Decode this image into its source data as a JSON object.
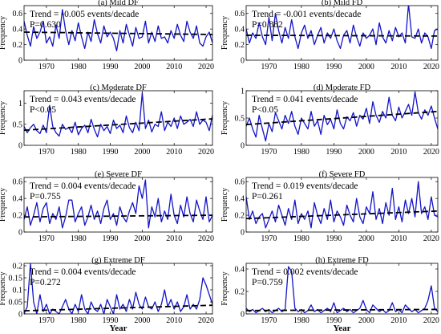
{
  "colors": {
    "series": "#1414c8",
    "trend": "#000000",
    "axis": "#000000"
  },
  "x_axis_title": "Year",
  "y_axis_title": "Frequency",
  "chart_data": [
    {
      "type": "line",
      "title": "(a) Mild DF",
      "ylabel": "Frequency",
      "xlim": [
        1963,
        2022
      ],
      "ylim": [
        0,
        0.7
      ],
      "xticks": [
        1970,
        1980,
        1990,
        2000,
        2010,
        2020
      ],
      "xtick_labels": [
        "1970",
        "1980",
        "1990",
        "2000",
        "2010",
        "2020"
      ],
      "yticks": [
        0,
        0.2,
        0.4,
        0.6
      ],
      "ytick_labels": [
        "0",
        "0.2",
        "0.4",
        "0.6"
      ],
      "annotation_trend": "Trend = -0.005 events/decade",
      "annotation_p": "P=0.630",
      "trend_line": [
        0.36,
        0.33
      ],
      "series": [
        {
          "values": [
            0.5,
            0.32,
            0.18,
            0.43,
            0.28,
            0.36,
            0.5,
            0.22,
            0.3,
            0.18,
            0.45,
            0.28,
            0.65,
            0.38,
            0.2,
            0.38,
            0.25,
            0.48,
            0.3,
            0.15,
            0.36,
            0.24,
            0.52,
            0.34,
            0.22,
            0.44,
            0.3,
            0.36,
            0.28,
            0.12,
            0.38,
            0.22,
            0.46,
            0.32,
            0.18,
            0.42,
            0.28,
            0.3,
            0.5,
            0.22,
            0.36,
            0.24,
            0.44,
            0.28,
            0.3,
            0.22,
            0.38,
            0.28,
            0.46,
            0.32,
            0.24,
            0.5,
            0.36,
            0.28,
            0.44,
            0.22,
            0.18,
            0.3,
            0.36,
            0.22
          ]
        }
      ]
    },
    {
      "type": "line",
      "title": "(b) Mild FD",
      "ylabel": "Frequency",
      "xlim": [
        1963,
        2022
      ],
      "ylim": [
        0,
        0.7
      ],
      "xticks": [
        1970,
        1980,
        1990,
        2000,
        2010,
        2020
      ],
      "xtick_labels": [
        "1970",
        "1980",
        "1990",
        "2000",
        "2010",
        "2020"
      ],
      "yticks": [
        0,
        0.2,
        0.4,
        0.6
      ],
      "ytick_labels": [
        "0",
        "0.2",
        "0.4",
        "0.6"
      ],
      "annotation_trend": "Trend = -0.001 events/decade",
      "annotation_p": "P=0.882",
      "trend_line": [
        0.32,
        0.31
      ],
      "series": [
        {
          "values": [
            0.4,
            0.22,
            0.35,
            0.28,
            0.48,
            0.3,
            0.2,
            0.55,
            0.25,
            0.6,
            0.38,
            0.22,
            0.42,
            0.28,
            0.52,
            0.3,
            0.15,
            0.35,
            0.45,
            0.28,
            0.38,
            0.2,
            0.32,
            0.42,
            0.22,
            0.35,
            0.28,
            0.4,
            0.25,
            0.15,
            0.32,
            0.38,
            0.22,
            0.45,
            0.3,
            0.18,
            0.35,
            0.28,
            0.32,
            0.4,
            0.2,
            0.48,
            0.3,
            0.22,
            0.38,
            0.25,
            0.42,
            0.3,
            0.35,
            0.22,
            0.72,
            0.3,
            0.28,
            0.4,
            0.22,
            0.35,
            0.3,
            0.15,
            0.38,
            0.4
          ]
        }
      ]
    },
    {
      "type": "line",
      "title": "(c) Moderate DF",
      "ylabel": "Frequency",
      "xlim": [
        1963,
        2022
      ],
      "ylim": [
        0,
        1.3
      ],
      "xticks": [
        1970,
        1980,
        1990,
        2000,
        2010,
        2020
      ],
      "xtick_labels": [
        "1970",
        "1980",
        "1990",
        "2000",
        "2010",
        "2020"
      ],
      "yticks": [
        0,
        0.5,
        1
      ],
      "ytick_labels": [
        "0",
        "0.5",
        "1"
      ],
      "annotation_trend": "Trend = 0.043 events/decade",
      "annotation_p": "P<0.05",
      "trend_line": [
        0.36,
        0.63
      ],
      "series": [
        {
          "values": [
            0.45,
            0.3,
            0.42,
            0.5,
            0.35,
            0.28,
            0.48,
            0.3,
            0.95,
            0.45,
            0.3,
            0.22,
            0.5,
            0.38,
            0.42,
            0.3,
            0.55,
            0.25,
            0.4,
            0.48,
            0.3,
            0.62,
            0.38,
            0.2,
            0.5,
            0.35,
            0.45,
            0.28,
            0.6,
            0.4,
            0.48,
            0.3,
            0.7,
            0.42,
            0.3,
            0.55,
            0.35,
            1.25,
            0.4,
            0.6,
            0.32,
            0.5,
            0.45,
            0.8,
            0.35,
            0.55,
            0.45,
            0.65,
            0.4,
            0.7,
            0.5,
            0.55,
            0.62,
            0.45,
            0.8,
            0.5,
            0.6,
            0.55,
            0.35,
            0.72
          ]
        }
      ]
    },
    {
      "type": "line",
      "title": "(d) Moderate FD",
      "ylabel": "Frequency",
      "xlim": [
        1963,
        2022
      ],
      "ylim": [
        0,
        1
      ],
      "xticks": [
        1970,
        1980,
        1990,
        2000,
        2010,
        2020
      ],
      "xtick_labels": [
        "1970",
        "1980",
        "1990",
        "2000",
        "2010",
        "2020"
      ],
      "yticks": [
        0,
        0.5,
        1
      ],
      "ytick_labels": [
        "0",
        "0.5",
        "1"
      ],
      "annotation_trend": "Trend = 0.041 events/decade",
      "annotation_p": "P<0.05",
      "trend_line": [
        0.38,
        0.62
      ],
      "series": [
        {
          "values": [
            0.35,
            0.5,
            0.3,
            0.15,
            0.55,
            0.3,
            0.08,
            0.4,
            0.25,
            0.6,
            0.45,
            0.3,
            0.55,
            0.4,
            0.62,
            0.35,
            0.2,
            0.5,
            0.4,
            0.3,
            0.62,
            0.35,
            0.45,
            0.2,
            0.55,
            0.38,
            0.48,
            0.3,
            0.65,
            0.4,
            0.3,
            0.52,
            0.45,
            0.6,
            0.35,
            0.55,
            0.48,
            0.68,
            0.4,
            0.8,
            0.55,
            0.42,
            0.62,
            0.5,
            0.88,
            0.55,
            0.45,
            0.7,
            0.5,
            0.62,
            0.75,
            0.55,
            0.98,
            0.6,
            0.48,
            0.65,
            0.55,
            0.72,
            0.5,
            0.3
          ]
        }
      ]
    },
    {
      "type": "line",
      "title": "(e) Severe DF",
      "ylabel": "Frequency",
      "xlim": [
        1963,
        2022
      ],
      "ylim": [
        0,
        0.65
      ],
      "xticks": [
        1970,
        1980,
        1990,
        2000,
        2010,
        2020
      ],
      "xtick_labels": [
        "1970",
        "1980",
        "1990",
        "2000",
        "2010",
        "2020"
      ],
      "yticks": [
        0,
        0.2,
        0.4,
        0.6
      ],
      "ytick_labels": [
        "0",
        "0.2",
        "0.4",
        "0.6"
      ],
      "annotation_trend": "Trend = 0.004 events/decade",
      "annotation_p": "P=0.755",
      "trend_line": [
        0.18,
        0.2
      ],
      "series": [
        {
          "values": [
            0.15,
            0.3,
            0.08,
            0.2,
            0.35,
            0.12,
            0.28,
            0.35,
            0.1,
            0.22,
            0.15,
            0.3,
            0.05,
            0.18,
            0.38,
            0.38,
            0.12,
            0.22,
            0.3,
            0.08,
            0.18,
            0.32,
            0.15,
            0.25,
            0.1,
            0.28,
            0.38,
            0.15,
            0.22,
            0.08,
            0.3,
            0.18,
            0.12,
            0.25,
            0.35,
            0.22,
            0.55,
            0.4,
            0.62,
            0.05,
            0.3,
            0.18,
            0.4,
            0.12,
            0.25,
            0.15,
            0.45,
            0.2,
            0.1,
            0.32,
            0.18,
            0.42,
            0.22,
            0.12,
            0.38,
            0.25,
            0.15,
            0.42,
            0.12,
            0.2
          ]
        }
      ]
    },
    {
      "type": "line",
      "title": "(f) Severe FD",
      "ylabel": "Frequency",
      "xlim": [
        1963,
        2022
      ],
      "ylim": [
        0,
        0.65
      ],
      "xticks": [
        1970,
        1980,
        1990,
        2000,
        2010,
        2020
      ],
      "xtick_labels": [
        "1970",
        "1980",
        "1990",
        "2000",
        "2010",
        "2020"
      ],
      "yticks": [
        0,
        0.2,
        0.4,
        0.6
      ],
      "ytick_labels": [
        "0",
        "0.2",
        "0.4",
        "0.6"
      ],
      "annotation_trend": "Trend = 0.019 events/decade",
      "annotation_p": "P=0.261",
      "trend_line": [
        0.16,
        0.25
      ],
      "series": [
        {
          "values": [
            0.42,
            0.15,
            0.25,
            0.1,
            0.18,
            0.22,
            0.05,
            0.15,
            0.25,
            0.12,
            0.32,
            0.2,
            0.08,
            0.28,
            0.15,
            0.38,
            0.1,
            0.22,
            0.15,
            0.25,
            0.05,
            0.35,
            0.2,
            0.1,
            0.28,
            0.15,
            0.38,
            0.12,
            0.25,
            0.18,
            0.08,
            0.32,
            0.2,
            0.12,
            0.4,
            0.18,
            0.1,
            0.3,
            0.22,
            0.48,
            0.15,
            0.28,
            0.1,
            0.35,
            0.2,
            0.52,
            0.15,
            0.3,
            0.12,
            0.38,
            0.22,
            0.4,
            0.18,
            0.6,
            0.22,
            0.3,
            0.15,
            0.42,
            0.2,
            0.18
          ]
        }
      ]
    },
    {
      "type": "line",
      "title": "(g) Extreme DF",
      "ylabel": "Frequency",
      "xlim": [
        1963,
        2022
      ],
      "ylim": [
        0,
        0.21
      ],
      "xticks": [
        1970,
        1980,
        1990,
        2000,
        2010,
        2020
      ],
      "xtick_labels": [
        "1970",
        "1980",
        "1990",
        "2000",
        "2010",
        "2020"
      ],
      "yticks": [
        0,
        0.05,
        0.1,
        0.15,
        0.2
      ],
      "ytick_labels": [
        "0",
        "0.05",
        "0.1",
        "0.15",
        "0.2"
      ],
      "annotation_trend": "Trend = 0.004 events/decade",
      "annotation_p": "P=0.272",
      "trend_line": [
        0.013,
        0.036
      ],
      "series": [
        {
          "values": [
            0,
            0.03,
            0.21,
            0.05,
            0,
            0.08,
            0.01,
            0.04,
            0,
            0.02,
            0.01,
            0,
            0.03,
            0.06,
            0.02,
            0,
            0.04,
            0.01,
            0.08,
            0.02,
            0,
            0.05,
            0.02,
            0.01,
            0.04,
            0,
            0.06,
            0.03,
            0,
            0.08,
            0.02,
            0.04,
            0.01,
            0.06,
            0.02,
            0.09,
            0.04,
            0.02,
            0.07,
            0.03,
            0.02,
            0.05,
            0.01,
            0.04,
            0.1,
            0.03,
            0.06,
            0.02,
            0.05,
            0.01,
            0.03,
            0.08,
            0.02,
            0.04,
            0.02,
            0.06,
            0.15,
            0.12,
            0.08,
            0.04
          ]
        }
      ]
    },
    {
      "type": "line",
      "title": "(h) Extreme FD",
      "ylabel": "Frequency",
      "xlim": [
        1963,
        2022
      ],
      "ylim": [
        0,
        0.45
      ],
      "xticks": [
        1970,
        1980,
        1990,
        2000,
        2010,
        2020
      ],
      "xtick_labels": [
        "1970",
        "1980",
        "1990",
        "2000",
        "2010",
        "2020"
      ],
      "yticks": [
        0,
        0.2,
        0.4
      ],
      "ytick_labels": [
        "0",
        "0.2",
        "0.4"
      ],
      "annotation_trend": "Trend = 0.002 events/decade",
      "annotation_p": "P=0.759",
      "trend_line": [
        0.03,
        0.04
      ],
      "series": [
        {
          "values": [
            0.05,
            0.02,
            0.04,
            0.01,
            0.03,
            0.05,
            0.02,
            0.04,
            0.01,
            0.03,
            0.05,
            0.02,
            0.04,
            0.42,
            0.38,
            0.05,
            0.02,
            0.04,
            0.01,
            0.03,
            0.08,
            0.02,
            0.04,
            0.01,
            0.03,
            0.05,
            0.02,
            0.1,
            0.01,
            0.03,
            0.05,
            0.02,
            0.04,
            0.01,
            0.03,
            0.05,
            0.12,
            0.04,
            0.01,
            0.08,
            0.05,
            0.02,
            0.04,
            0.01,
            0.03,
            0.1,
            0.02,
            0.04,
            0.01,
            0.08,
            0.05,
            0.02,
            0.04,
            0.01,
            0.03,
            0.05,
            0.12,
            0.25,
            0.05,
            0.02
          ]
        }
      ]
    }
  ]
}
